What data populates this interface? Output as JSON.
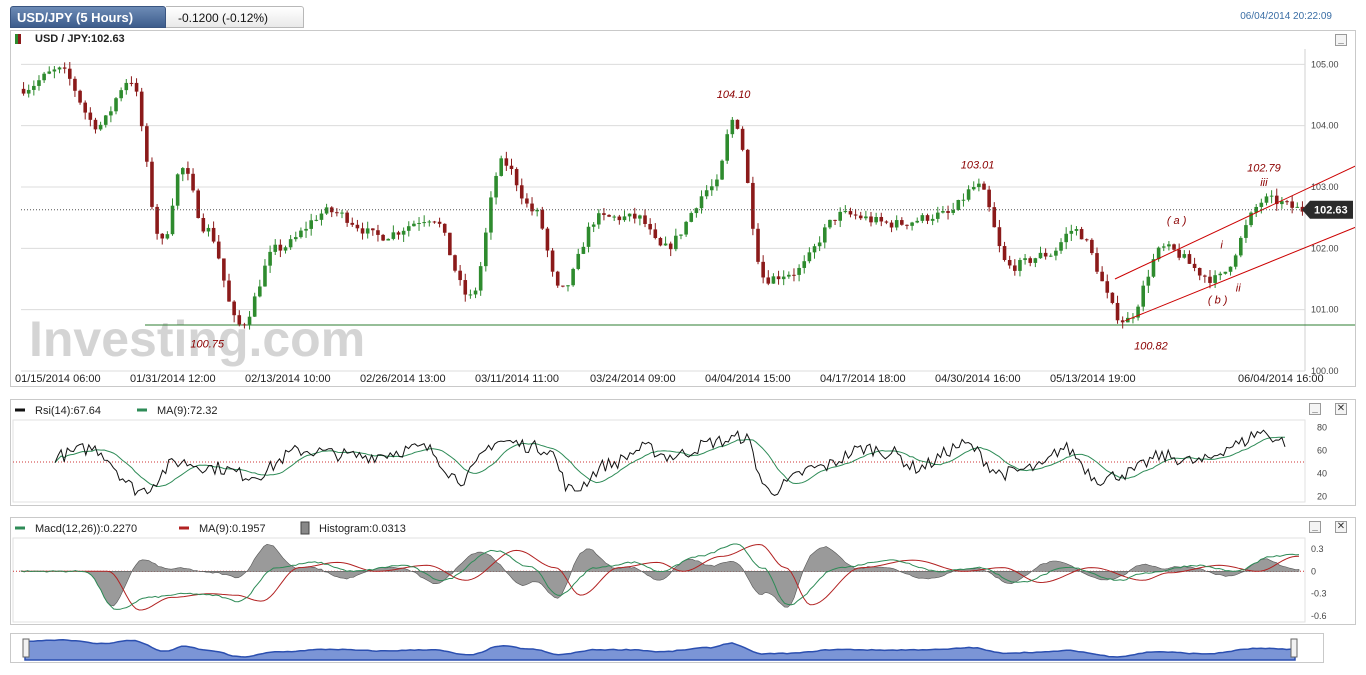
{
  "header": {
    "title": "USD/JPY (5 Hours)",
    "change": "-0.1200 (-0.12%)",
    "datetime": "06/04/2014 20:22:09"
  },
  "colors": {
    "tab_bg": "#4a6b9a",
    "up_candle": "#2e8b2e",
    "down_candle": "#8b1a1a",
    "annotation": "#8b0000",
    "channel": "#cc0000",
    "support": "#2e7d32",
    "rsi_line": "#111111",
    "rsi_ma": "#2e8b57",
    "macd_line": "#2e8b57",
    "macd_signal": "#b22222",
    "histogram": "#888888",
    "navigator_fill": "#7b95d6"
  },
  "watermark": {
    "text": "Investing.com"
  },
  "chart_data": [
    {
      "type": "candlestick",
      "title": "USD / JPY:102.63",
      "last_price_label": "102.63",
      "yaxis_ticks": [
        "100.00",
        "101.00",
        "102.00",
        "103.00",
        "104.00",
        "105.00"
      ],
      "ylim": [
        100.0,
        105.25
      ],
      "xaxis_ticks": [
        "01/15/2014 06:00",
        "01/31/2014 12:00",
        "02/13/2014 10:00",
        "02/26/2014 13:00",
        "03/11/2014 11:00",
        "03/24/2014 09:00",
        "04/04/2014 15:00",
        "04/17/2014 18:00",
        "04/30/2014 16:00",
        "05/13/2014 19:00",
        "06/04/2014 16:00"
      ],
      "key_points": [
        {
          "t": 0,
          "v": 104.6
        },
        {
          "t": 0.03,
          "v": 104.9
        },
        {
          "t": 0.06,
          "v": 104.0
        },
        {
          "t": 0.085,
          "v": 104.75
        },
        {
          "t": 0.11,
          "v": 102.1
        },
        {
          "t": 0.125,
          "v": 103.3
        },
        {
          "t": 0.145,
          "v": 102.3
        },
        {
          "t": 0.17,
          "v": 100.75
        },
        {
          "t": 0.2,
          "v": 102.0
        },
        {
          "t": 0.24,
          "v": 102.6
        },
        {
          "t": 0.28,
          "v": 102.2
        },
        {
          "t": 0.32,
          "v": 102.5
        },
        {
          "t": 0.35,
          "v": 101.2
        },
        {
          "t": 0.375,
          "v": 103.4
        },
        {
          "t": 0.4,
          "v": 102.6
        },
        {
          "t": 0.42,
          "v": 101.3
        },
        {
          "t": 0.45,
          "v": 102.5
        },
        {
          "t": 0.48,
          "v": 102.5
        },
        {
          "t": 0.5,
          "v": 102.0
        },
        {
          "t": 0.54,
          "v": 103.0
        },
        {
          "t": 0.555,
          "v": 104.1
        },
        {
          "t": 0.58,
          "v": 101.5
        },
        {
          "t": 0.6,
          "v": 101.6
        },
        {
          "t": 0.64,
          "v": 102.55
        },
        {
          "t": 0.68,
          "v": 102.4
        },
        {
          "t": 0.72,
          "v": 102.55
        },
        {
          "t": 0.745,
          "v": 103.01
        },
        {
          "t": 0.77,
          "v": 101.7
        },
        {
          "t": 0.8,
          "v": 101.9
        },
        {
          "t": 0.82,
          "v": 102.3
        },
        {
          "t": 0.86,
          "v": 100.82
        },
        {
          "t": 0.89,
          "v": 102.0
        },
        {
          "t": 0.93,
          "v": 101.5
        },
        {
          "t": 0.97,
          "v": 102.79
        },
        {
          "t": 1.0,
          "v": 102.63
        }
      ],
      "annotations": [
        {
          "text": "104.10",
          "t": 0.555,
          "v": 104.45
        },
        {
          "text": "103.01",
          "t": 0.745,
          "v": 103.3
        },
        {
          "text": "102.79",
          "t": 0.968,
          "v": 103.25
        },
        {
          "text": "iii",
          "t": 0.968,
          "v": 103.02
        },
        {
          "text": "( a )",
          "t": 0.9,
          "v": 102.4
        },
        {
          "text": "i",
          "t": 0.935,
          "v": 102.0
        },
        {
          "text": "ii",
          "t": 0.948,
          "v": 101.3
        },
        {
          "text": "( b )",
          "t": 0.932,
          "v": 101.1
        },
        {
          "text": "100.82",
          "t": 0.88,
          "v": 100.35
        },
        {
          "text": "100.75",
          "t": 0.145,
          "v": 100.38
        }
      ],
      "support_level": 100.75,
      "channel_upper": [
        {
          "t": 0.852,
          "v": 101.5
        },
        {
          "t": 1.04,
          "v": 103.35
        }
      ],
      "channel_lower": [
        {
          "t": 0.86,
          "v": 100.82
        },
        {
          "t": 1.04,
          "v": 102.35
        }
      ]
    },
    {
      "type": "line",
      "title": "Rsi(14):67.64",
      "series": [
        {
          "name": "Rsi(14):67.64"
        },
        {
          "name": "MA(9):72.32"
        }
      ],
      "yaxis_ticks": [
        "20",
        "40",
        "60",
        "80"
      ],
      "ylim": [
        15,
        85
      ],
      "reference_level": 50,
      "key_points": [
        {
          "t": 0,
          "v": 55
        },
        {
          "t": 0.03,
          "v": 62
        },
        {
          "t": 0.07,
          "v": 25
        },
        {
          "t": 0.1,
          "v": 50
        },
        {
          "t": 0.13,
          "v": 45
        },
        {
          "t": 0.16,
          "v": 38
        },
        {
          "t": 0.2,
          "v": 60
        },
        {
          "t": 0.25,
          "v": 55
        },
        {
          "t": 0.3,
          "v": 62
        },
        {
          "t": 0.33,
          "v": 35
        },
        {
          "t": 0.36,
          "v": 68
        },
        {
          "t": 0.4,
          "v": 62
        },
        {
          "t": 0.42,
          "v": 25
        },
        {
          "t": 0.45,
          "v": 48
        },
        {
          "t": 0.48,
          "v": 62
        },
        {
          "t": 0.5,
          "v": 55
        },
        {
          "t": 0.54,
          "v": 68
        },
        {
          "t": 0.56,
          "v": 72
        },
        {
          "t": 0.58,
          "v": 25
        },
        {
          "t": 0.62,
          "v": 45
        },
        {
          "t": 0.66,
          "v": 62
        },
        {
          "t": 0.68,
          "v": 58
        },
        {
          "t": 0.7,
          "v": 45
        },
        {
          "t": 0.74,
          "v": 65
        },
        {
          "t": 0.77,
          "v": 40
        },
        {
          "t": 0.8,
          "v": 45
        },
        {
          "t": 0.82,
          "v": 62
        },
        {
          "t": 0.85,
          "v": 35
        },
        {
          "t": 0.87,
          "v": 40
        },
        {
          "t": 0.9,
          "v": 55
        },
        {
          "t": 0.93,
          "v": 50
        },
        {
          "t": 0.96,
          "v": 65
        },
        {
          "t": 0.98,
          "v": 76
        },
        {
          "t": 1.0,
          "v": 68
        }
      ]
    },
    {
      "type": "line",
      "title": "Macd(12,26)):0.2270",
      "series": [
        {
          "name": "Macd(12,26)):0.2270"
        },
        {
          "name": "MA(9):0.1957"
        },
        {
          "name": "Histogram:0.0313"
        }
      ],
      "yaxis_ticks": [
        "0.3",
        "0",
        "-0.3",
        "-0.6"
      ],
      "ylim": [
        -0.68,
        0.42
      ],
      "key_points": [
        {
          "t": 0,
          "v": 0
        },
        {
          "t": 0.05,
          "v": 0
        },
        {
          "t": 0.075,
          "v": -0.52
        },
        {
          "t": 0.1,
          "v": -0.35
        },
        {
          "t": 0.13,
          "v": -0.3
        },
        {
          "t": 0.15,
          "v": -0.32
        },
        {
          "t": 0.17,
          "v": -0.4
        },
        {
          "t": 0.2,
          "v": 0.05
        },
        {
          "t": 0.23,
          "v": 0.12
        },
        {
          "t": 0.26,
          "v": 0.0
        },
        {
          "t": 0.3,
          "v": 0.08
        },
        {
          "t": 0.33,
          "v": -0.12
        },
        {
          "t": 0.37,
          "v": 0.28
        },
        {
          "t": 0.4,
          "v": 0.05
        },
        {
          "t": 0.42,
          "v": -0.32
        },
        {
          "t": 0.45,
          "v": 0.05
        },
        {
          "t": 0.48,
          "v": 0.12
        },
        {
          "t": 0.5,
          "v": 0.0
        },
        {
          "t": 0.53,
          "v": 0.2
        },
        {
          "t": 0.56,
          "v": 0.36
        },
        {
          "t": 0.58,
          "v": 0.05
        },
        {
          "t": 0.6,
          "v": -0.45
        },
        {
          "t": 0.64,
          "v": 0.05
        },
        {
          "t": 0.68,
          "v": 0.15
        },
        {
          "t": 0.72,
          "v": 0.0
        },
        {
          "t": 0.75,
          "v": 0.05
        },
        {
          "t": 0.78,
          "v": -0.15
        },
        {
          "t": 0.82,
          "v": 0.05
        },
        {
          "t": 0.86,
          "v": -0.12
        },
        {
          "t": 0.88,
          "v": -0.02
        },
        {
          "t": 0.92,
          "v": 0.08
        },
        {
          "t": 0.95,
          "v": 0.0
        },
        {
          "t": 0.98,
          "v": 0.2
        },
        {
          "t": 1.0,
          "v": 0.23
        }
      ]
    }
  ]
}
